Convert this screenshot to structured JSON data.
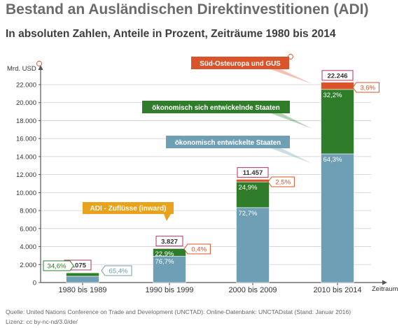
{
  "title": "Bestand an Ausländischen Direktinvestitionen (ADI)",
  "subtitle": "In absoluten Zahlen, Anteile in Prozent, Zeiträume 1980 bis 2014",
  "source": "Quelle: United Nations Conference on Trade and Development (UNCTAD): Online-Datenbank: UNCTADstat (Stand: Januar 2016)",
  "license": "Lizenz: cc by-nc-nd/3.0/de/",
  "colors": {
    "developed": "#6e9fb4",
    "developing": "#2f7d2b",
    "transition": "#d9542b",
    "inflows": "#e8a21c",
    "total_box": "#b0335a",
    "axis": "#555555",
    "grid": "#cfcfcf"
  },
  "chart_data": {
    "type": "bar",
    "stacked": true,
    "ylabel": "Mrd. USD",
    "xlabel": "Zeitraum",
    "ylim": [
      0,
      22000
    ],
    "yticks": [
      "0",
      "2.000",
      "4.000",
      "6.000",
      "8.000",
      "10.000",
      "12.000",
      "14.000",
      "16.000",
      "18.000",
      "20.000",
      "22.000"
    ],
    "categories": [
      "1980 bis 1989",
      "1990 bis 1999",
      "2000 bis 2009",
      "2010 bis 2014"
    ],
    "totals": [
      1075,
      3827,
      11457,
      22246
    ],
    "total_labels": [
      "1.075",
      "3.827",
      "11.457",
      "22.246"
    ],
    "series": [
      {
        "key": "developed",
        "name": "ökonomisch entwickelte Staaten",
        "shares": [
          65.4,
          76.7,
          72.7,
          64.3
        ],
        "labels": [
          "65,4%",
          "76,7%",
          "72,7%",
          "64,3%"
        ]
      },
      {
        "key": "developing",
        "name": "ökonomisch sich entwickelnde Staaten",
        "shares": [
          34.6,
          22.9,
          24.9,
          32.2
        ],
        "labels": [
          "34,6%",
          "22,9%",
          "24,9%",
          "32,2%"
        ]
      },
      {
        "key": "transition",
        "name": "Süd-Osteuropa und GUS",
        "shares": [
          0,
          0.4,
          2.5,
          3.6
        ],
        "labels": [
          "",
          "0,4%",
          "2,5%",
          "3,6%"
        ]
      }
    ],
    "callouts": {
      "inflows": "ADI - Zuflüsse (inward)"
    },
    "grid": true
  }
}
